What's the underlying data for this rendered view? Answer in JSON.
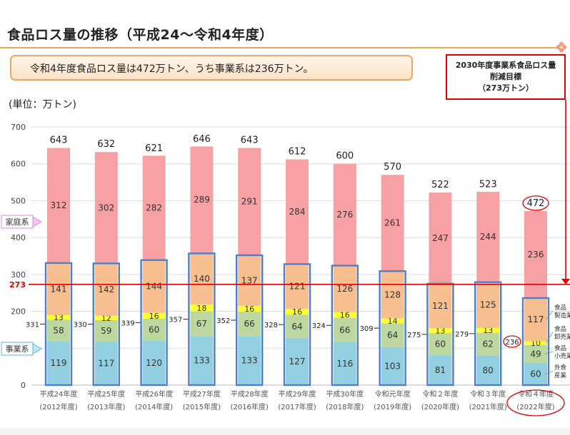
{
  "title": "食品ロス量の推移（平成24～令和4年度）",
  "banner": "令和4年度食品ロス量は472万トン、うち事業系は236万トン。",
  "target_box": {
    "line1": "2030年度事業系食品ロス量",
    "line2": "削減目標",
    "line3": "（273万トン）"
  },
  "unit_label": "(単位：万トン)",
  "colors": {
    "household": "#f7a1a5",
    "manufacturing": "#f7be90",
    "wholesale": "#ffff33",
    "retail": "#bdd7a0",
    "food_service": "#92cfe1",
    "outline": "#4f7fc8",
    "target_line": "#e00000"
  },
  "chart_data": {
    "type": "bar",
    "stacked": true,
    "categories": [
      {
        "line1": "平成24年度",
        "line2": "(2012年度)"
      },
      {
        "line1": "平成25年度",
        "line2": "(2013年度)"
      },
      {
        "line1": "平成26年度",
        "line2": "(2014年度)"
      },
      {
        "line1": "平成27年度",
        "line2": "(2015年度)"
      },
      {
        "line1": "平成28年度",
        "line2": "(2016年度)"
      },
      {
        "line1": "平成29年度",
        "line2": "(2017年度)"
      },
      {
        "line1": "平成30年度",
        "line2": "(2018年度)"
      },
      {
        "line1": "令和元年度",
        "line2": "(2019年度)"
      },
      {
        "line1": "令和２年度",
        "line2": "(2020年度)"
      },
      {
        "line1": "令和３年度",
        "line2": "(2021年度)"
      },
      {
        "line1": "令和４年度",
        "line2": "(2022年度)"
      }
    ],
    "series": [
      {
        "key": "food_service",
        "values": [
          119,
          117,
          120,
          133,
          133,
          127,
          116,
          103,
          81,
          80,
          60
        ]
      },
      {
        "key": "retail",
        "values": [
          58,
          59,
          60,
          67,
          66,
          64,
          66,
          64,
          60,
          62,
          49
        ]
      },
      {
        "key": "wholesale",
        "values": [
          13,
          12,
          16,
          18,
          16,
          16,
          16,
          14,
          13,
          13,
          10
        ]
      },
      {
        "key": "manufacturing",
        "values": [
          141,
          142,
          144,
          140,
          137,
          121,
          126,
          128,
          121,
          125,
          117
        ]
      },
      {
        "key": "household",
        "values": [
          312,
          302,
          282,
          289,
          291,
          284,
          276,
          261,
          247,
          244,
          236
        ]
      }
    ],
    "totals": [
      643,
      632,
      621,
      646,
      643,
      612,
      600,
      570,
      522,
      523,
      472
    ],
    "business_totals": [
      331,
      330,
      339,
      357,
      352,
      328,
      324,
      309,
      275,
      279,
      236
    ],
    "ylim": [
      0,
      700
    ],
    "yticks": [
      0,
      100,
      200,
      300,
      400,
      500,
      600,
      700
    ],
    "grid": true,
    "target_line": {
      "value": 273,
      "label": "273"
    },
    "household_label": "家庭系",
    "business_label": "事業系",
    "sector_labels": [
      {
        "line1": "食品",
        "line2": "製造業"
      },
      {
        "line1": "食品",
        "line2": "卸売業"
      },
      {
        "line1": "食品",
        "line2": "小売業"
      },
      {
        "line1": "外食",
        "line2": "産業"
      }
    ]
  }
}
